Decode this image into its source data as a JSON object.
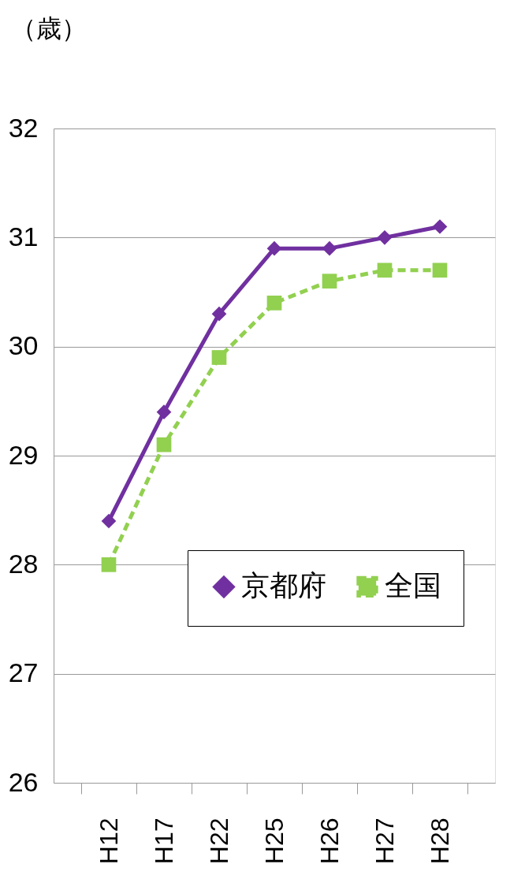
{
  "chart_data": {
    "type": "line",
    "ylabel": "（歳）",
    "categories": [
      "H12",
      "H17",
      "H22",
      "H25",
      "H26",
      "H27",
      "H28"
    ],
    "series": [
      {
        "name": "京都府",
        "color": "#7030a0",
        "values": [
          28.4,
          29.4,
          30.3,
          30.9,
          30.9,
          31.0,
          31.1
        ],
        "marker": "diamond",
        "line_style": "solid"
      },
      {
        "name": "全国",
        "color": "#92d050",
        "values": [
          28.0,
          29.1,
          29.9,
          30.4,
          30.6,
          30.7,
          30.7
        ],
        "marker": "square",
        "line_style": "dashed"
      }
    ],
    "ylim": [
      26,
      32
    ],
    "yticks": [
      26,
      27,
      28,
      29,
      30,
      31,
      32
    ],
    "grid": "y",
    "legend": "bottom right"
  }
}
